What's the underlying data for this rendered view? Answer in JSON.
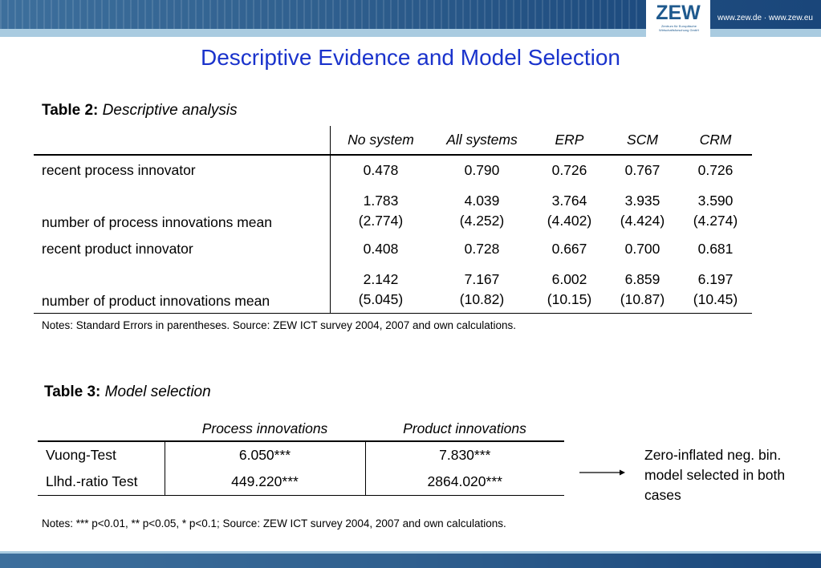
{
  "header": {
    "logo_text": "ZEW",
    "logo_subtitle": "Zentrum für Europäische Wirtschaftsforschung GmbH",
    "url_text": "www.zew.de · www.zew.eu",
    "colors": {
      "band": "#2f5f8e",
      "stripe": "#a9cbe0",
      "title": "#1a33cc"
    }
  },
  "title": "Descriptive Evidence and Model Selection",
  "table2": {
    "caption_bold": "Table 2:",
    "caption_italic": "Descriptive analysis",
    "columns": [
      "No system",
      "All systems",
      "ERP",
      "SCM",
      "CRM"
    ],
    "rows": [
      {
        "label": "recent process innovator",
        "values": [
          "0.478",
          "0.790",
          "0.726",
          "0.767",
          "0.726"
        ]
      },
      {
        "label": "number of process innovations mean",
        "values": [
          "1.783",
          "4.039",
          "3.764",
          "3.935",
          "3.590"
        ],
        "se": [
          "(2.774)",
          "(4.252)",
          "(4.402)",
          "(4.424)",
          "(4.274)"
        ]
      },
      {
        "label": "recent product innovator",
        "values": [
          "0.408",
          "0.728",
          "0.667",
          "0.700",
          "0.681"
        ]
      },
      {
        "label": "number of product innovations mean",
        "values": [
          "2.142",
          "7.167",
          "6.002",
          "6.859",
          "6.197"
        ],
        "se": [
          "(5.045)",
          "(10.82)",
          "(10.15)",
          "(10.87)",
          "(10.45)"
        ]
      }
    ],
    "notes": "Notes: Standard Errors in parentheses. Source: ZEW ICT survey 2004, 2007 and own calculations."
  },
  "table3": {
    "caption_bold": "Table 3:",
    "caption_italic": "Model selection",
    "columns": [
      "Process innovations",
      "Product innovations"
    ],
    "rows": [
      {
        "label": "Vuong-Test",
        "values": [
          "6.050***",
          "7.830***"
        ]
      },
      {
        "label": "Llhd.-ratio Test",
        "values": [
          "449.220***",
          "2864.020***"
        ]
      }
    ],
    "notes": "Notes: *** p<0.01,  ** p<0.05,  * p<0.1; Source: ZEW ICT survey 2004, 2007 and own calculations.",
    "side_note": "Zero-inflated neg. bin. model selected in both cases"
  }
}
